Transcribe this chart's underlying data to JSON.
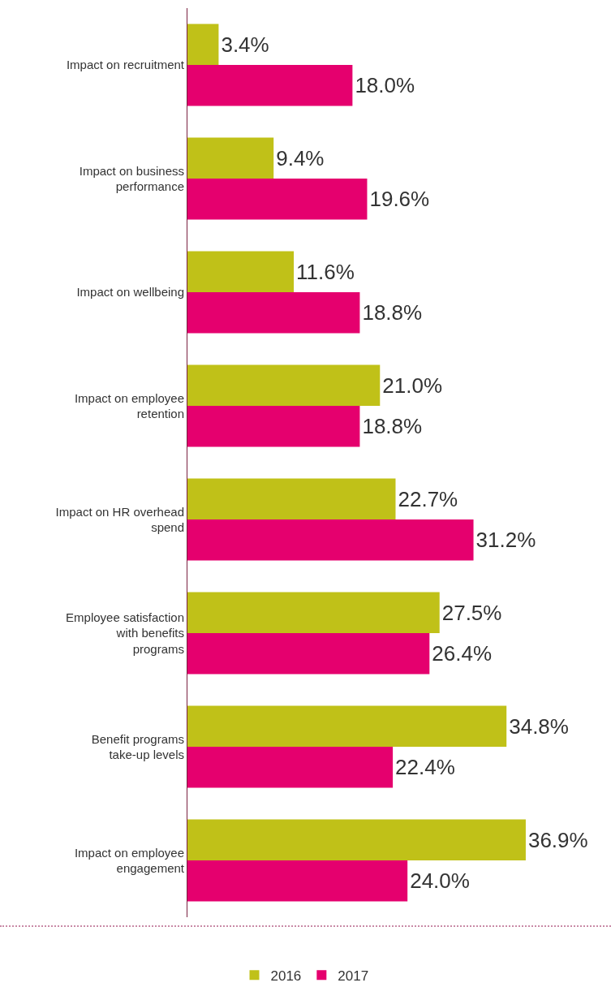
{
  "chart_data": {
    "type": "bar",
    "orientation": "horizontal",
    "categories": [
      "Impact on recruitment",
      "Impact on business performance",
      "Impact on wellbeing",
      "Impact on employee retention",
      "Impact on HR overhead spend",
      "Employee satisfaction with benefits programs",
      "Benefit programs take-up levels",
      "Impact on employee engagement"
    ],
    "series": [
      {
        "name": "2016",
        "color": "#c0c118",
        "values": [
          3.4,
          9.4,
          11.6,
          21.0,
          22.7,
          27.5,
          34.8,
          36.9
        ],
        "value_labels": [
          "3.4%",
          "9.4%",
          "11.6%",
          "21.0%",
          "22.7%",
          "27.5%",
          "34.8%",
          "36.9%"
        ]
      },
      {
        "name": "2017",
        "color": "#e5006e",
        "values": [
          18.0,
          19.6,
          18.8,
          18.8,
          31.2,
          26.4,
          22.4,
          24.0
        ],
        "value_labels": [
          "18.0%",
          "19.6%",
          "18.8%",
          "18.8%",
          "31.2%",
          "26.4%",
          "22.4%",
          "24.0%"
        ]
      }
    ],
    "legend": "bottom"
  }
}
